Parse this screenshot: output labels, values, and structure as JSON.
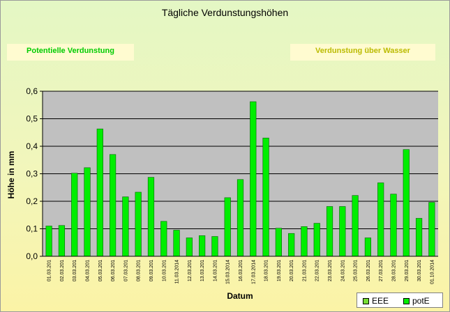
{
  "header": {
    "title": "Tägliche Verdunstungshöhen",
    "left_label": "Potentielle Verdunstung",
    "right_label": "Verdunstung über Wasser"
  },
  "legend": {
    "eee": "EEE",
    "pote": "potE"
  },
  "colors": {
    "bar": "#00ee00",
    "bar_edge": "#006600",
    "plot_bg": "#c0c0c0",
    "eee": "#77dd33"
  },
  "chart_data": {
    "type": "bar",
    "title": "Tägliche Verdunstungshöhen",
    "xlabel": "Datum",
    "ylabel": "Höhe in mm",
    "ylim": [
      0,
      0.6
    ],
    "y_ticks": [
      "0,0",
      "0,1",
      "0,2",
      "0,3",
      "0,4",
      "0,5",
      "0,6"
    ],
    "grid": true,
    "legend_position": "bottom-right",
    "categories": [
      "01.03.201",
      "02.03.201",
      "03.03.201",
      "04.03.201",
      "05.03.201",
      "06.03.201",
      "07.03.201",
      "08.03.201",
      "09.03.201",
      "10.03.201",
      "11.03.2014",
      "12.03.201",
      "13.03.201",
      "14.03.201",
      "15.03.2014",
      "16.03.201",
      "17.03.2014",
      "18.03.201",
      "19.03.201",
      "20.03.201",
      "21.03.201",
      "22.03.201",
      "23.03.201",
      "24.03.201",
      "25.03.201",
      "26.03.201",
      "27.03.201",
      "28.03.201",
      "29.03.201",
      "30.03.201",
      "01.10.2014"
    ],
    "series": [
      {
        "name": "potE",
        "values": [
          0.11,
          0.112,
          0.302,
          0.322,
          0.463,
          0.37,
          0.216,
          0.233,
          0.287,
          0.127,
          0.095,
          0.067,
          0.075,
          0.072,
          0.213,
          0.279,
          0.562,
          0.43,
          0.102,
          0.083,
          0.108,
          0.12,
          0.181,
          0.181,
          0.221,
          0.067,
          0.267,
          0.226,
          0.388,
          0.138,
          0.196
        ]
      }
    ]
  }
}
